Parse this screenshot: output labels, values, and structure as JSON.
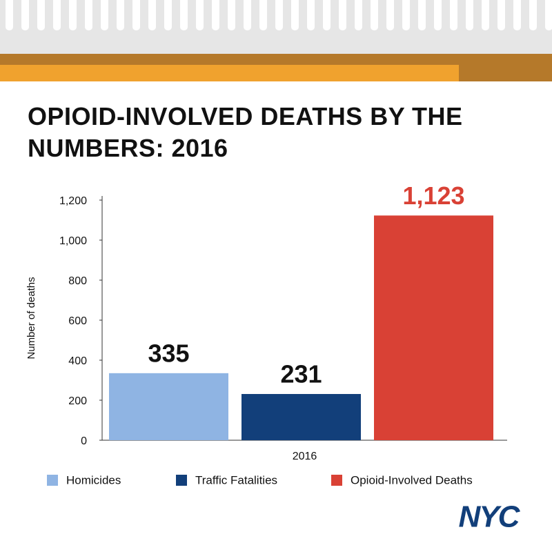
{
  "chart_data": {
    "type": "bar",
    "title": "OPIOID-INVOLVED DEATHS BY THE NUMBERS: 2016",
    "y_label": "Number of deaths",
    "categories": [
      "2016"
    ],
    "series": [
      {
        "name": "Homicides",
        "color": "#8fb4e3",
        "label_color": "#111111",
        "values": [
          335
        ]
      },
      {
        "name": "Traffic Fatalities",
        "color": "#123f7a",
        "label_color": "#111111",
        "values": [
          231
        ]
      },
      {
        "name": "Opioid-Involved Deaths",
        "color": "#d94135",
        "label_color": "#d94135",
        "values": [
          1123
        ],
        "value_labels": [
          "1,123"
        ]
      }
    ],
    "ylim": [
      0,
      1200
    ],
    "yticks": [
      0,
      200,
      400,
      600,
      800,
      {
        "value": 1000,
        "label": "1,000"
      },
      {
        "value": 1200,
        "label": "1,200"
      }
    ],
    "grid": false,
    "legend": "bottom",
    "logo": "NYC"
  }
}
